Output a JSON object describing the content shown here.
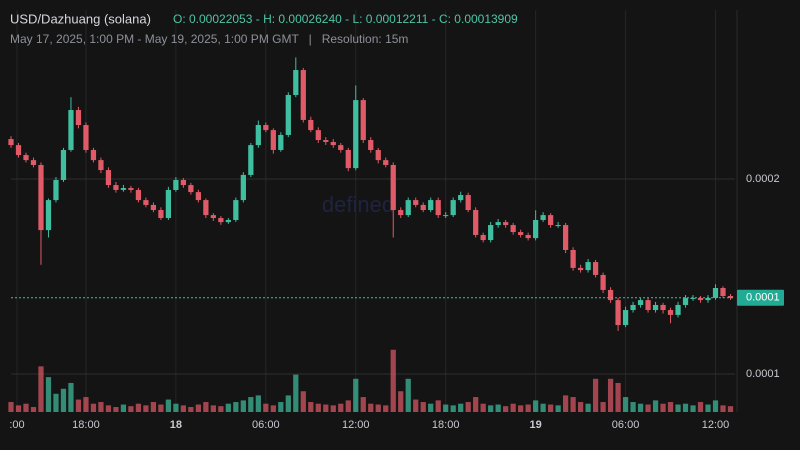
{
  "chart_data": {
    "type": "candlestick",
    "title": "USD/Dazhuang (solana)",
    "legend_text": "O: 0.00022053 - H: 0.00026240 - L: 0.00012211 - C: 0.00013909",
    "subtitle": "May 17, 2025, 1:00 PM - May 19, 2025, 1:00 PM GMT   |   Resolution: 15m",
    "watermark": "defined",
    "up_color": "#3fbf9f",
    "down_color": "#e05a67",
    "ylim": [
      8.05e-05,
      0.0002867
    ],
    "yticks": [
      0.0001,
      0.0002
    ],
    "xlim": [
      0,
      48.3
    ],
    "xticks": [
      {
        "value": 0.4,
        "label": ":00"
      },
      {
        "value": 5,
        "label": "18:00"
      },
      {
        "value": 11,
        "label": "18"
      },
      {
        "value": 17,
        "label": "06:00"
      },
      {
        "value": 23,
        "label": "12:00"
      },
      {
        "value": 29,
        "label": "18:00"
      },
      {
        "value": 35,
        "label": "19"
      },
      {
        "value": 41,
        "label": "06:00"
      },
      {
        "value": 47,
        "label": "12:00"
      }
    ],
    "grid": true,
    "last_price": 0.00013909,
    "last_price_label": "0.0001",
    "open": [
      0.0002205,
      0.0002174,
      0.0002123,
      0.0002097,
      0.0002072,
      0.0001738,
      0.0001892,
      0.0001995,
      0.0002149,
      0.0002354,
      0.0002277,
      0.0002149,
      0.0002097,
      0.0002046,
      0.0001969,
      0.0001944,
      0.0001954,
      0.0001944,
      0.0001892,
      0.0001867,
      0.0001841,
      0.00018,
      0.0001944,
      0.0001995,
      0.0001969,
      0.0001933,
      0.0001892,
      0.0001815,
      0.00018,
      0.0001779,
      0.000179,
      0.0001892,
      0.0002021,
      0.0002174,
      0.0002277,
      0.0002251,
      0.0002149,
      0.0002226,
      0.0002431,
      0.0002559,
      0.0002303,
      0.0002251,
      0.00022,
      0.000219,
      0.0002174,
      0.0002149,
      0.0002056,
      0.0002405,
      0.00022,
      0.0002149,
      0.0002097,
      0.0002072,
      0.0001841,
      0.0001815,
      0.0001892,
      0.0001867,
      0.0001841,
      0.0001892,
      0.0001815,
      0.0001815,
      0.0001892,
      0.0001918,
      0.0001841,
      0.0001713,
      0.0001687,
      0.0001764,
      0.0001779,
      0.0001764,
      0.0001728,
      0.0001713,
      0.0001697,
      0.000179,
      0.0001815,
      0.0001764,
      0.0001764,
      0.0001636,
      0.0001544,
      0.0001533,
      0.0001574,
      0.0001508,
      0.0001431,
      0.0001379,
      0.0001251,
      0.0001328,
      0.0001354,
      0.0001379,
      0.0001328,
      0.0001354,
      0.0001328,
      0.0001303,
      0.0001354,
      0.000139,
      0.000139,
      0.0001379,
      0.000139,
      0.0001441,
      0.00014
    ],
    "high": [
      0.000222,
      0.0002185,
      0.0002135,
      0.000211,
      0.0002085,
      0.00019,
      0.000201,
      0.000216,
      0.000242,
      0.000237,
      0.000229,
      0.000216,
      0.000211,
      0.000206,
      0.0001985,
      0.000197,
      0.0001965,
      0.0001955,
      0.0001905,
      0.000188,
      0.0001855,
      0.000196,
      0.000201,
      0.0002005,
      0.000198,
      0.0001945,
      0.00019,
      0.0001825,
      0.000181,
      0.00018,
      0.0001905,
      0.0002035,
      0.0002185,
      0.00023,
      0.000229,
      0.000226,
      0.000224,
      0.0002445,
      0.0002624,
      0.000257,
      0.000232,
      0.0002265,
      0.0002215,
      0.0002205,
      0.0002185,
      0.000216,
      0.000248,
      0.0002415,
      0.0002215,
      0.000216,
      0.000211,
      0.0002085,
      0.0001855,
      0.0001905,
      0.0001905,
      0.000188,
      0.0001905,
      0.0001905,
      0.000183,
      0.0001905,
      0.0001935,
      0.000193,
      0.0001855,
      0.0001725,
      0.000178,
      0.0001795,
      0.000179,
      0.0001775,
      0.000174,
      0.0001725,
      0.000184,
      0.000183,
      0.0001825,
      0.000178,
      0.0001775,
      0.000165,
      0.000156,
      0.000159,
      0.0001585,
      0.000152,
      0.0001445,
      0.000139,
      0.0001345,
      0.000137,
      0.000139,
      0.000139,
      0.000137,
      0.0001365,
      0.000134,
      0.000137,
      0.0001405,
      0.0001405,
      0.00014,
      0.0001405,
      0.000146,
      0.000145,
      0.000141
    ],
    "low": [
      0.000216,
      0.000211,
      0.0002085,
      0.000206,
      0.000156,
      0.00017,
      0.000188,
      0.0001985,
      0.000214,
      0.000226,
      0.0002135,
      0.0002085,
      0.000203,
      0.0001955,
      0.000193,
      0.0001935,
      0.000193,
      0.000188,
      0.0001855,
      0.000183,
      0.000179,
      0.000179,
      0.0001935,
      0.0001955,
      0.000192,
      0.000188,
      0.00018,
      0.0001785,
      0.0001765,
      0.000177,
      0.000178,
      0.000188,
      0.000201,
      0.000216,
      0.000224,
      0.000213,
      0.000214,
      0.0002215,
      0.000242,
      0.000229,
      0.000224,
      0.0002185,
      0.0002175,
      0.000216,
      0.0002135,
      0.000204,
      0.0002045,
      0.0002185,
      0.0002135,
      0.000208,
      0.000206,
      0.00017,
      0.00018,
      0.0001805,
      0.0001855,
      0.000183,
      0.000183,
      0.00018,
      0.00018,
      0.0001805,
      0.000188,
      0.000183,
      0.00017,
      0.0001675,
      0.0001675,
      0.000175,
      0.000175,
      0.0001715,
      0.00017,
      0.0001685,
      0.0001685,
      0.000178,
      0.000175,
      0.000175,
      0.000162,
      0.000153,
      0.000152,
      0.000152,
      0.0001495,
      0.0001415,
      0.0001365,
      0.0001221,
      0.000124,
      0.0001315,
      0.000134,
      0.0001315,
      0.0001315,
      0.000131,
      0.000126,
      0.000129,
      0.000134,
      0.0001375,
      0.0001365,
      0.0001365,
      0.000138,
      0.000139,
      0.000138
    ],
    "close": [
      0.0002174,
      0.0002123,
      0.0002097,
      0.0002072,
      0.0001738,
      0.0001892,
      0.0001995,
      0.0002149,
      0.0002354,
      0.0002277,
      0.0002149,
      0.0002097,
      0.0002046,
      0.0001969,
      0.0001944,
      0.0001954,
      0.0001944,
      0.0001892,
      0.0001867,
      0.0001841,
      0.00018,
      0.0001944,
      0.0001995,
      0.0001969,
      0.0001933,
      0.0001892,
      0.0001815,
      0.00018,
      0.0001779,
      0.000179,
      0.0001892,
      0.0002021,
      0.0002174,
      0.0002277,
      0.0002251,
      0.0002149,
      0.0002226,
      0.0002431,
      0.0002559,
      0.0002303,
      0.0002251,
      0.00022,
      0.000219,
      0.0002174,
      0.0002149,
      0.0002056,
      0.0002405,
      0.00022,
      0.0002149,
      0.0002097,
      0.0002072,
      0.0001841,
      0.0001815,
      0.0001892,
      0.0001867,
      0.0001841,
      0.0001892,
      0.0001815,
      0.0001815,
      0.0001892,
      0.0001918,
      0.0001841,
      0.0001713,
      0.0001687,
      0.0001764,
      0.0001779,
      0.0001764,
      0.0001728,
      0.0001713,
      0.0001697,
      0.000179,
      0.0001815,
      0.0001764,
      0.0001764,
      0.0001636,
      0.0001544,
      0.0001533,
      0.0001574,
      0.0001508,
      0.0001431,
      0.0001379,
      0.0001251,
      0.0001328,
      0.0001354,
      0.0001379,
      0.0001328,
      0.0001354,
      0.0001328,
      0.0001303,
      0.0001354,
      0.000139,
      0.000139,
      0.0001379,
      0.000139,
      0.0001441,
      0.00014,
      0.000139
    ],
    "volume": [
      12,
      8,
      10,
      6,
      55,
      42,
      22,
      28,
      35,
      15,
      18,
      10,
      12,
      8,
      6,
      9,
      7,
      10,
      8,
      12,
      9,
      15,
      10,
      8,
      6,
      9,
      12,
      8,
      7,
      10,
      12,
      14,
      18,
      20,
      10,
      8,
      12,
      20,
      45,
      25,
      12,
      10,
      9,
      8,
      10,
      14,
      40,
      18,
      10,
      9,
      8,
      75,
      25,
      40,
      15,
      12,
      10,
      14,
      9,
      8,
      10,
      12,
      18,
      10,
      8,
      9,
      7,
      10,
      8,
      9,
      14,
      10,
      9,
      8,
      20,
      18,
      12,
      10,
      40,
      12,
      40,
      35,
      18,
      12,
      10,
      9,
      14,
      10,
      12,
      9,
      10,
      8,
      12,
      9,
      14,
      8,
      7
    ]
  }
}
